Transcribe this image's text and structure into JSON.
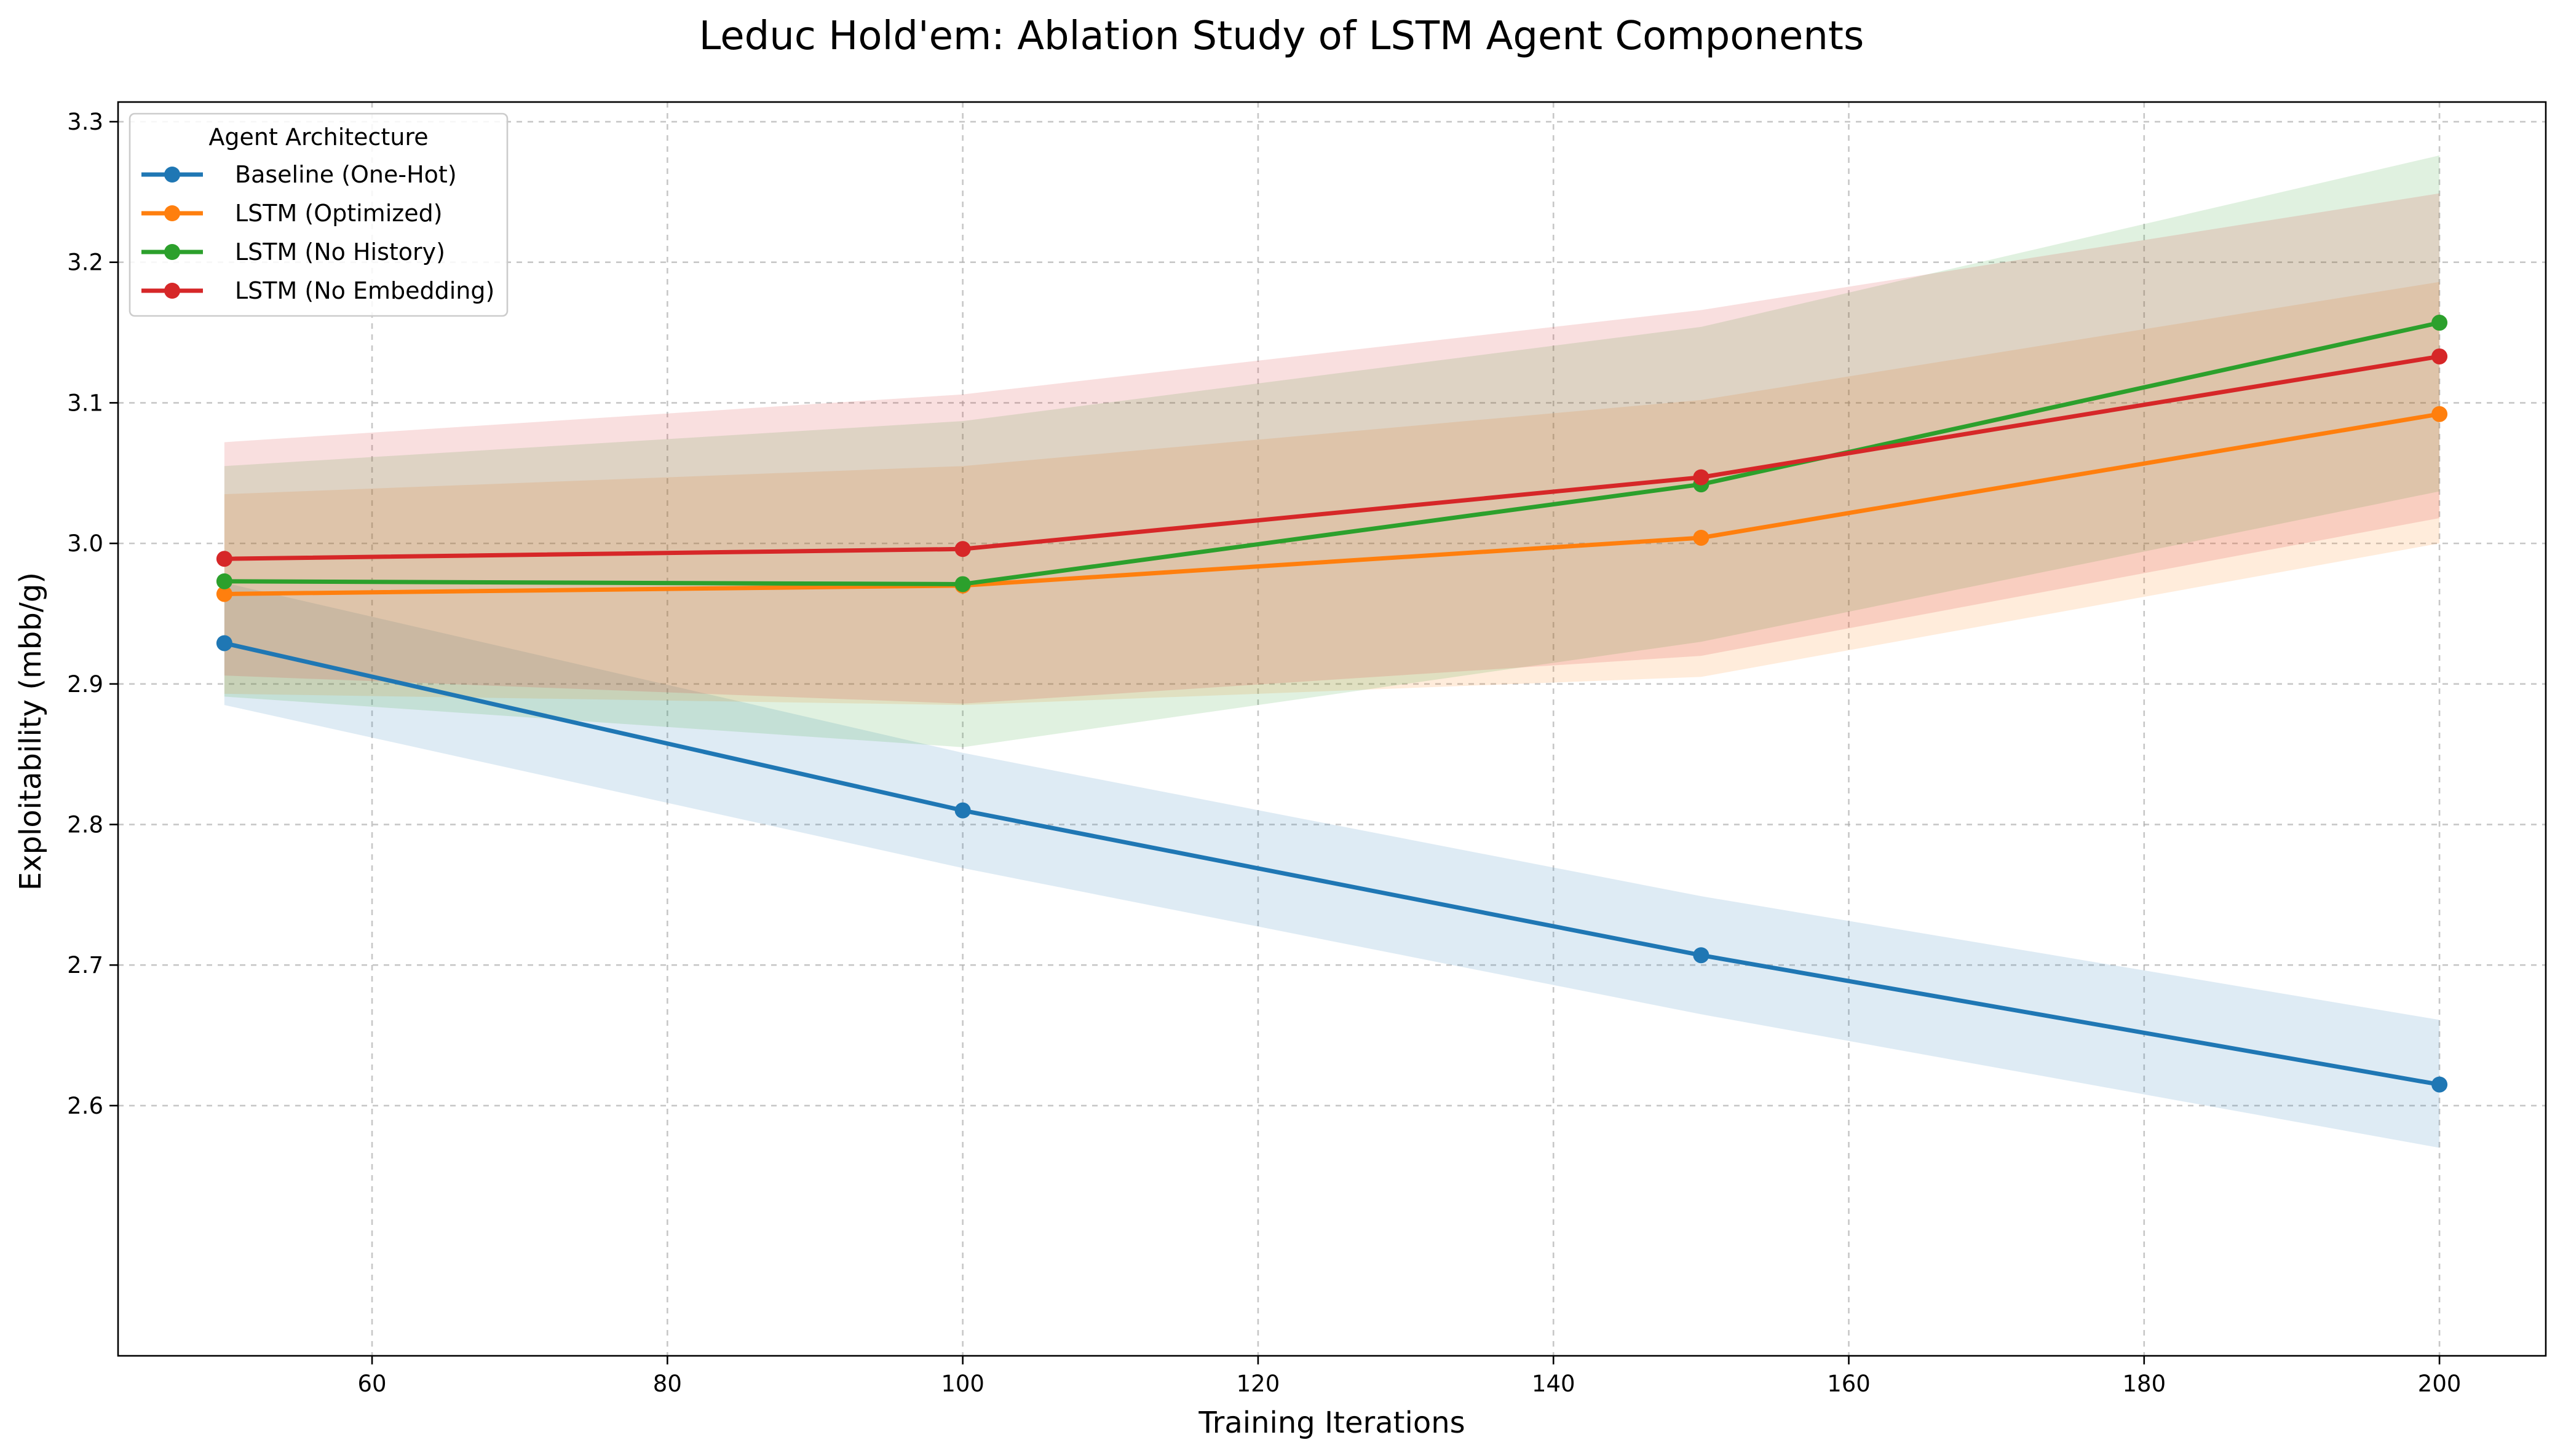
{
  "chart_data": {
    "type": "line",
    "title": "Leduc Hold'em: Ablation Study of LSTM Agent Components",
    "xlabel": "Training Iterations",
    "ylabel": "Exploitability (mbb/g)",
    "xlim": [
      42.8,
      207.2
    ],
    "ylim": [
      2.422,
      3.314
    ],
    "xticks": [
      60,
      80,
      100,
      120,
      140,
      160,
      180,
      200
    ],
    "yticks": [
      2.6,
      2.7,
      2.8,
      2.9,
      3.0,
      3.1,
      3.2,
      3.3
    ],
    "grid": true,
    "legend": {
      "title": "Agent Architecture",
      "placement": "top-left"
    },
    "x": [
      50,
      100,
      150,
      200
    ],
    "series": [
      {
        "name": "Baseline (One-Hot)",
        "color": "#1f77b4",
        "values": [
          2.929,
          2.81,
          2.707,
          2.615
        ],
        "lower": [
          2.885,
          2.769,
          2.665,
          2.57
        ],
        "upper": [
          2.972,
          2.851,
          2.749,
          2.661
        ]
      },
      {
        "name": "LSTM (Optimized)",
        "color": "#ff7f0e",
        "values": [
          2.964,
          2.97,
          3.004,
          3.092
        ],
        "lower": [
          2.893,
          2.885,
          2.905,
          3.0
        ],
        "upper": [
          3.035,
          3.055,
          3.102,
          3.186
        ]
      },
      {
        "name": "LSTM (No History)",
        "color": "#2ca02c",
        "values": [
          2.973,
          2.971,
          3.042,
          3.157
        ],
        "lower": [
          2.891,
          2.855,
          2.93,
          3.037
        ],
        "upper": [
          3.055,
          3.087,
          3.154,
          3.276
        ]
      },
      {
        "name": "LSTM (No Embedding)",
        "color": "#d62728",
        "values": [
          2.989,
          2.996,
          3.047,
          3.133
        ],
        "lower": [
          2.906,
          2.886,
          2.92,
          3.018
        ],
        "upper": [
          3.072,
          3.106,
          3.166,
          3.249
        ]
      }
    ]
  }
}
